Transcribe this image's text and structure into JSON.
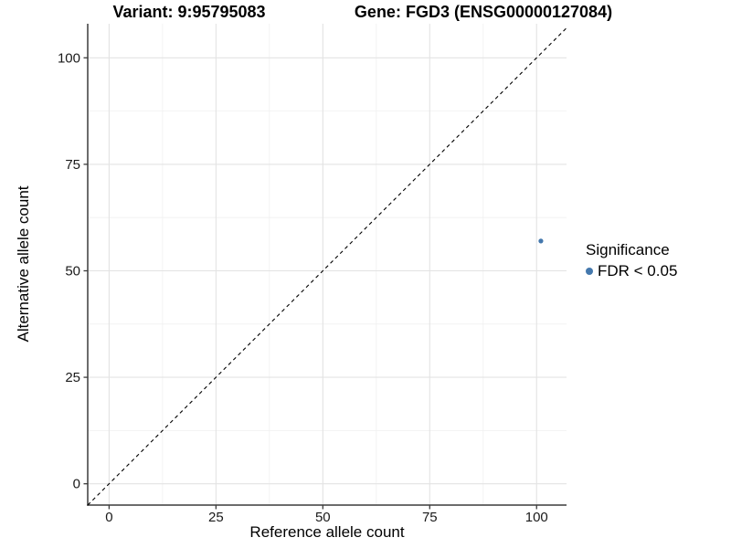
{
  "chart_data": {
    "type": "scatter",
    "title_variant": "Variant: 9:95795083",
    "title_gene": "Gene: FGD3 (ENSG00000127084)",
    "xlabel": "Reference allele count",
    "ylabel": "Alternative allele count",
    "xlim": [
      -5,
      107
    ],
    "ylim": [
      -5,
      108
    ],
    "xticks": [
      0,
      25,
      50,
      75,
      100
    ],
    "yticks": [
      0,
      25,
      50,
      75,
      100
    ],
    "xticks_minor": [
      12.5,
      37.5,
      62.5,
      87.5
    ],
    "yticks_minor": [
      12.5,
      37.5,
      62.5,
      87.5
    ],
    "grid": "major+minor",
    "legend_position": "right",
    "reference_line": {
      "kind": "identity y=x",
      "style": "dashed",
      "color": "#000000"
    },
    "series": [
      {
        "name": "FDR < 0.05",
        "color": "#4478ad",
        "marker": "circle",
        "points": [
          {
            "x": 101,
            "y": 57
          }
        ]
      }
    ],
    "legend": {
      "title": "Significance",
      "entries": [
        {
          "label": "FDR < 0.05",
          "color": "#4478ad"
        }
      ]
    }
  },
  "style": {
    "background": "#ffffff",
    "grid_major_color": "#e3e3e3",
    "grid_minor_color": "#f0f0f0",
    "axis_line_color": "#3c3c3c",
    "tick_color": "#3c3c3c",
    "tick_label_color": "#1a1a1a",
    "title_color": "#000000",
    "point_color": "#4478ad",
    "reference_line_color": "#000000"
  }
}
